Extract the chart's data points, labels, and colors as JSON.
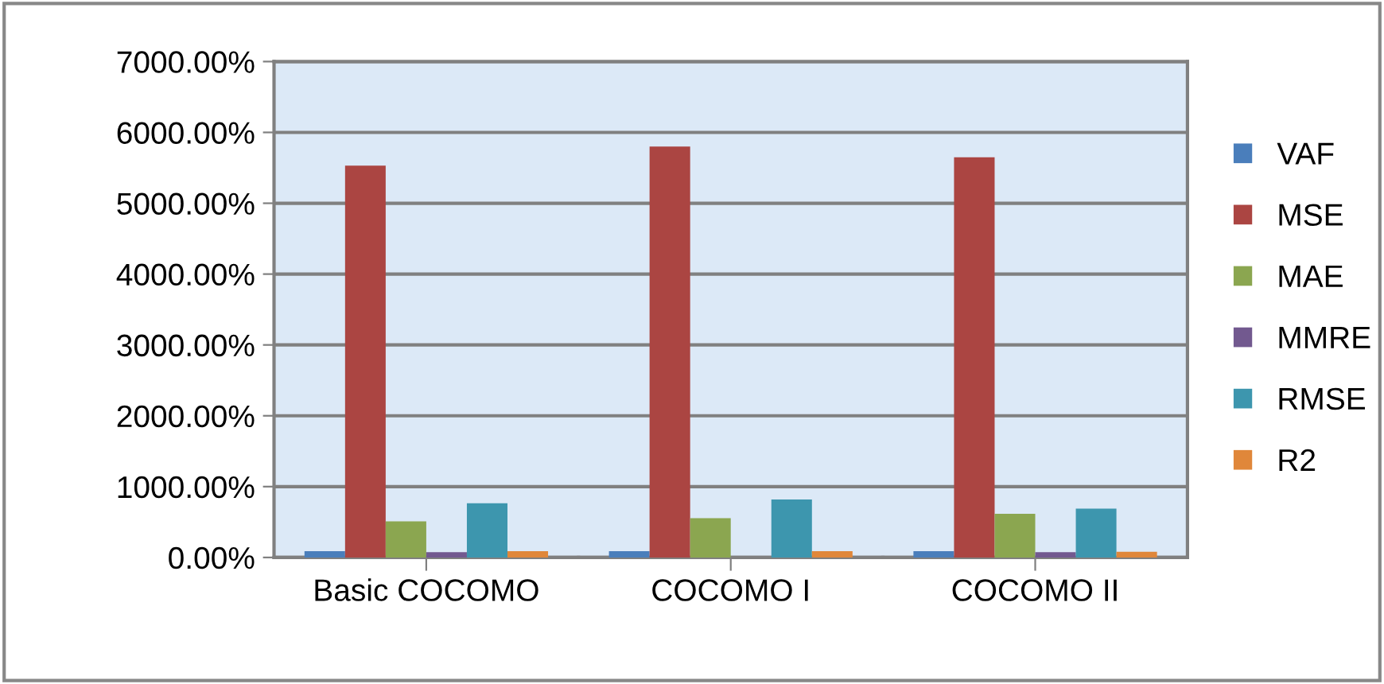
{
  "chart_data": {
    "type": "bar",
    "categories": [
      "Basic COCOMO",
      "COCOMO I",
      "COCOMO II"
    ],
    "series": [
      {
        "name": "VAF",
        "color": "#4a7ebb",
        "values": [
          90,
          90,
          90
        ]
      },
      {
        "name": "MSE",
        "color": "#ab4542",
        "values": [
          5530,
          5800,
          5650
        ]
      },
      {
        "name": "MAE",
        "color": "#8ba650",
        "values": [
          510,
          556,
          615
        ]
      },
      {
        "name": "MMRE",
        "color": "#72598f",
        "values": [
          75,
          0,
          75
        ]
      },
      {
        "name": "RMSE",
        "color": "#3d96ae",
        "values": [
          765,
          818,
          690
        ]
      },
      {
        "name": "R2",
        "color": "#e0873a",
        "values": [
          90,
          90,
          80
        ]
      }
    ],
    "ylim": [
      0,
      7000
    ],
    "yticks": [
      {
        "value": 0,
        "label": "0.00%"
      },
      {
        "value": 1000,
        "label": "1000.00%"
      },
      {
        "value": 2000,
        "label": "2000.00%"
      },
      {
        "value": 3000,
        "label": "3000.00%"
      },
      {
        "value": 4000,
        "label": "4000.00%"
      },
      {
        "value": 5000,
        "label": "5000.00%"
      },
      {
        "value": 6000,
        "label": "6000.00%"
      },
      {
        "value": 7000,
        "label": "7000.00%"
      }
    ],
    "grid": "y",
    "legend": "right"
  }
}
